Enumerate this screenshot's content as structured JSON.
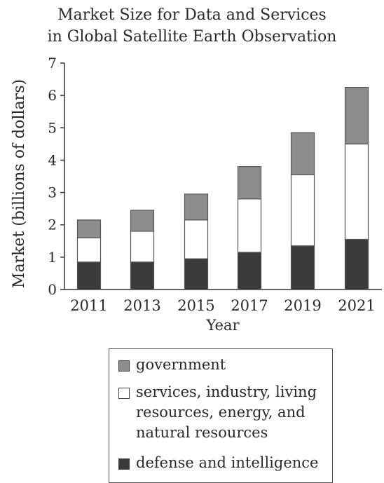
{
  "chart_data": {
    "type": "bar",
    "stacked": true,
    "title": [
      "Market Size for Data and Services",
      "in Global Satellite Earth Observation"
    ],
    "xlabel": "Year",
    "ylabel": "Market (billions of dollars)",
    "ylim": [
      0,
      7
    ],
    "yticks": [
      "0",
      "1",
      "2",
      "3",
      "4",
      "5",
      "6",
      "7"
    ],
    "categories": [
      "2011",
      "2013",
      "2015",
      "2017",
      "2019",
      "2021"
    ],
    "series": [
      {
        "name": "defense and intelligence",
        "color": "#3a3a3a",
        "values": [
          0.85,
          0.85,
          0.95,
          1.15,
          1.35,
          1.55
        ]
      },
      {
        "name": "services, industry, living resources, energy, and natural resources",
        "color": "#ffffff",
        "values": [
          0.75,
          0.95,
          1.2,
          1.65,
          2.2,
          2.95
        ]
      },
      {
        "name": "government",
        "color": "#8c8c8c",
        "values": [
          0.55,
          0.65,
          0.8,
          1.0,
          1.3,
          1.75
        ]
      }
    ],
    "grid": false,
    "legend_position": "bottom"
  },
  "legend": {
    "items": [
      {
        "label": "government",
        "color": "#8c8c8c"
      },
      {
        "label": "services, industry, living resources, energy, and natural resources",
        "color": "#ffffff"
      },
      {
        "label": "defense and intelligence",
        "color": "#3a3a3a"
      }
    ]
  }
}
